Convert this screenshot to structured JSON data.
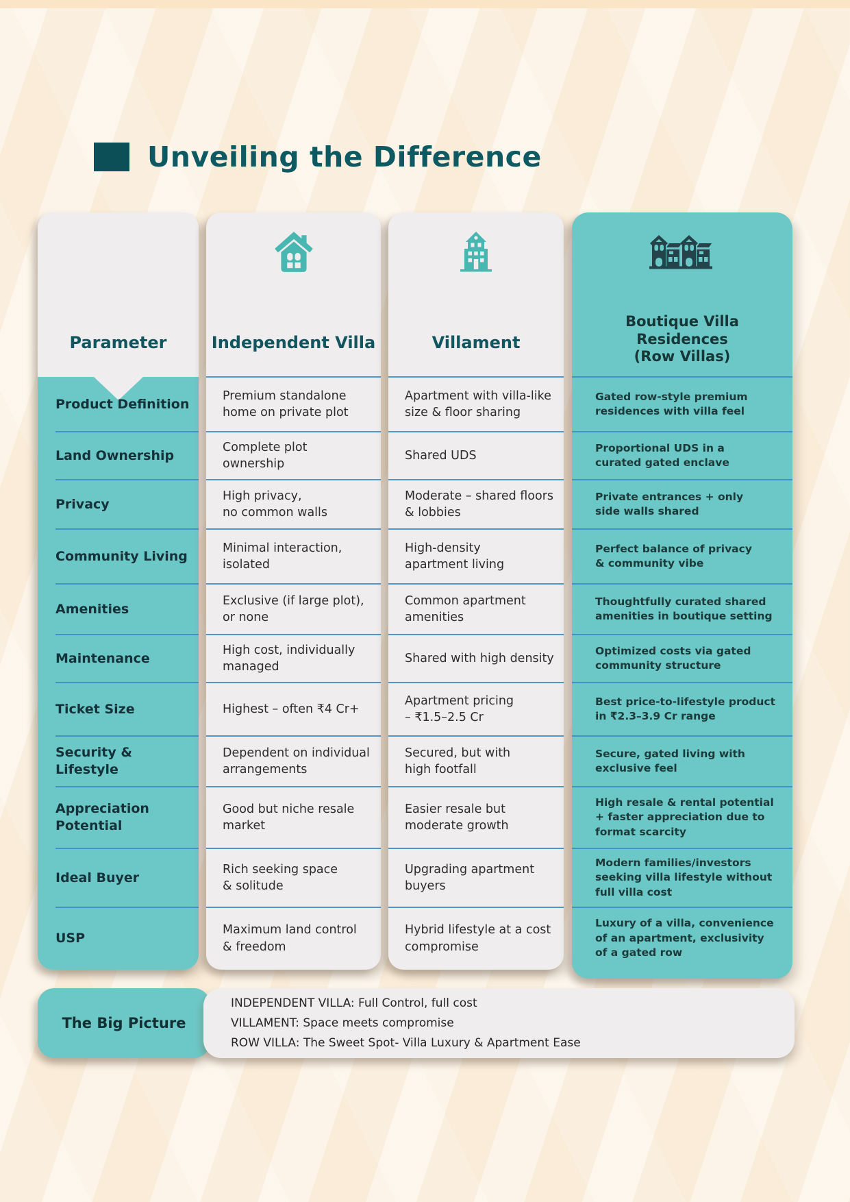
{
  "page": {
    "title": "Unveiling the Difference"
  },
  "table": {
    "columns": [
      {
        "key": "parameter",
        "label": "Parameter",
        "icon": null
      },
      {
        "key": "independent_villa",
        "label": "Independent Villa",
        "icon": "house-icon"
      },
      {
        "key": "villament",
        "label": "Villament",
        "icon": "apartment-building-icon"
      },
      {
        "key": "row_villas",
        "label": "Boutique Villa\nResidences\n(Row Villas)",
        "icon": "row-villas-icon"
      }
    ],
    "rows": [
      {
        "label": "Product Definition",
        "independent_villa": "Premium standalone\nhome on private plot",
        "villament": "Apartment with villa-like\nsize & floor sharing",
        "row_villas": "Gated row-style premium\nresidences with villa feel"
      },
      {
        "label": "Land Ownership",
        "independent_villa": "Complete plot\nownership",
        "villament": "Shared UDS",
        "row_villas": "Proportional UDS in a\ncurated gated enclave"
      },
      {
        "label": "Privacy",
        "independent_villa": "High privacy,\nno common walls",
        "villament": "Moderate – shared floors\n& lobbies",
        "row_villas": "Private entrances + only\nside walls shared"
      },
      {
        "label": "Community Living",
        "independent_villa": "Minimal interaction,\nisolated",
        "villament": "High-density\napartment living",
        "row_villas": "Perfect balance of privacy\n& community vibe"
      },
      {
        "label": "Amenities",
        "independent_villa": "Exclusive (if large plot),\nor none",
        "villament": "Common apartment\namenities",
        "row_villas": "Thoughtfully curated shared\namenities in boutique setting"
      },
      {
        "label": "Maintenance",
        "independent_villa": "High cost, individually\nmanaged",
        "villament": "Shared with high density",
        "row_villas": "Optimized costs via gated\ncommunity structure"
      },
      {
        "label": "Ticket Size",
        "independent_villa": "Highest – often ₹4 Cr+",
        "villament": "Apartment pricing\n– ₹1.5–2.5 Cr",
        "row_villas": "Best price-to-lifestyle product\nin ₹2.3–3.9 Cr range"
      },
      {
        "label": "Security & Lifestyle",
        "independent_villa": "Dependent on individual\narrangements",
        "villament": "Secured, but with\nhigh footfall",
        "row_villas": "Secure, gated living with\nexclusive feel"
      },
      {
        "label": "Appreciation\nPotential",
        "independent_villa": "Good but niche resale\nmarket",
        "villament": "Easier resale but\nmoderate growth",
        "row_villas": "High resale & rental potential\n+ faster appreciation due to\nformat scarcity"
      },
      {
        "label": "Ideal Buyer",
        "independent_villa": "Rich seeking space\n& solitude",
        "villament": "Upgrading apartment\nbuyers",
        "row_villas": "Modern families/investors\nseeking villa lifestyle without\nfull villa cost"
      },
      {
        "label": "USP",
        "independent_villa": "Maximum land control\n& freedom",
        "villament": "Hybrid lifestyle at a cost\ncompromise",
        "row_villas": "Luxury of a villa, convenience\nof an apartment, exclusivity\nof a gated row"
      }
    ]
  },
  "big_picture": {
    "label": "The Big Picture",
    "lines": [
      "INDEPENDENT VILLA: Full Control, full cost",
      "VILLAMENT: Space meets compromise",
      "ROW VILLA: The Sweet Spot- Villa Luxury & Apartment Ease"
    ]
  },
  "colors": {
    "teal": "#6cc8c6",
    "column_gray": "#efedee",
    "dark_teal_heading": "#11565e",
    "title_square": "#0c4f57",
    "divider_blue": "#3e8cc5",
    "background_cream": "#fcf1e1",
    "top_strip": "#fbe5c7",
    "dark_text_on_teal": "#1c3a3a",
    "icon_teal": "#49b7b1",
    "icon_dark": "#24434a"
  }
}
